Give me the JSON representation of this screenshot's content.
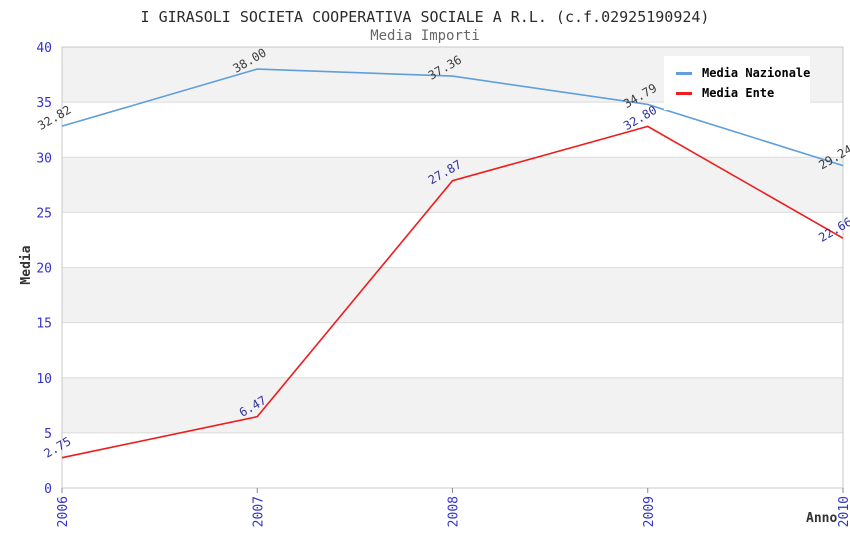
{
  "chart_data": {
    "type": "line",
    "title": "I GIRASOLI SOCIETA COOPERATIVA SOCIALE A R.L. (c.f.02925190924)",
    "subtitle": "Media Importi",
    "xlabel": "Anno",
    "ylabel": "Media",
    "categories": [
      "2006",
      "2007",
      "2008",
      "2009",
      "2010"
    ],
    "ylim": [
      0,
      40
    ],
    "ytick_step": 5,
    "yticks": [
      0,
      5,
      10,
      15,
      20,
      25,
      30,
      35,
      40
    ],
    "grid": "horizontal gridlines with alternating shaded bands",
    "legend_position": "top-right",
    "point_label_decimals": 2,
    "series": [
      {
        "name": "Media Nazionale",
        "color": "#5f9fdb",
        "label_color": "#3d3d3d",
        "values": [
          32.82,
          38.0,
          37.36,
          34.79,
          29.24
        ]
      },
      {
        "name": "Media Ente",
        "color": "#ee1c1c",
        "label_color": "#333399",
        "values": [
          2.75,
          6.47,
          27.87,
          32.8,
          22.66
        ]
      }
    ],
    "colors": {
      "axis_tick_labels": "#3333cc",
      "band_shaded": "#f2f2f2",
      "band_plain": "#ffffff",
      "gridline": "#dcdcdc",
      "plot_border": "#c8c8c8",
      "tick_mark": "#8a8a8a"
    }
  }
}
